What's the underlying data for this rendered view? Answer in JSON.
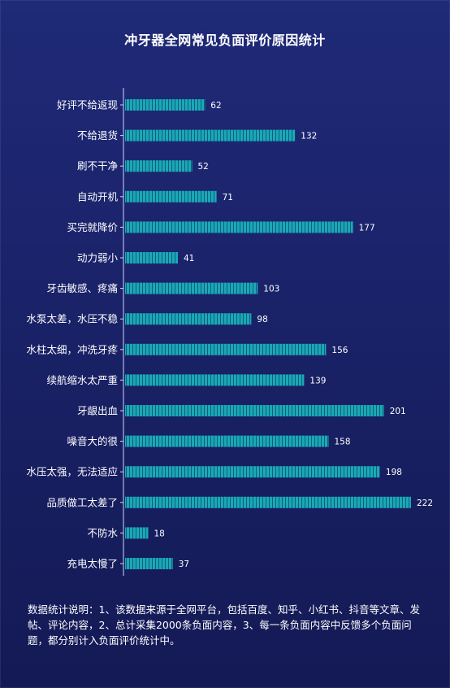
{
  "chart_data": {
    "type": "bar",
    "orientation": "horizontal",
    "title": "冲牙器全网常见负面评价原因统计",
    "categories": [
      "好评不给返现",
      "不给退货",
      "刷不干净",
      "自动开机",
      "买完就降价",
      "动力弱小",
      "牙齿敏感、疼痛",
      "水泵太差，水压不稳",
      "水柱太细，冲洗牙疼",
      "续航缩水太严重",
      "牙龈出血",
      "噪音大的很",
      "水压太强，无法适应",
      "品质做工太差了",
      "不防水",
      "充电太慢了"
    ],
    "values": [
      62,
      132,
      52,
      71,
      177,
      41,
      103,
      98,
      156,
      139,
      201,
      158,
      198,
      222,
      18,
      37
    ],
    "xlim": [
      0,
      222
    ],
    "grid": false,
    "legend": "none",
    "colors": {
      "bar": "#1aa8b8",
      "bar_stripe": "#0e5f78",
      "axis": "#cfd6ff",
      "text": "#ffffff"
    }
  },
  "footnote": "数据统计说明：1、该数据来源于全网平台，包括百度、知乎、小红书、抖音等文章、发帖、评论内容，2、总计采集2000条负面内容，3、每一条负面内容中反馈多个负面问题，都分别计入负面评价统计中。"
}
